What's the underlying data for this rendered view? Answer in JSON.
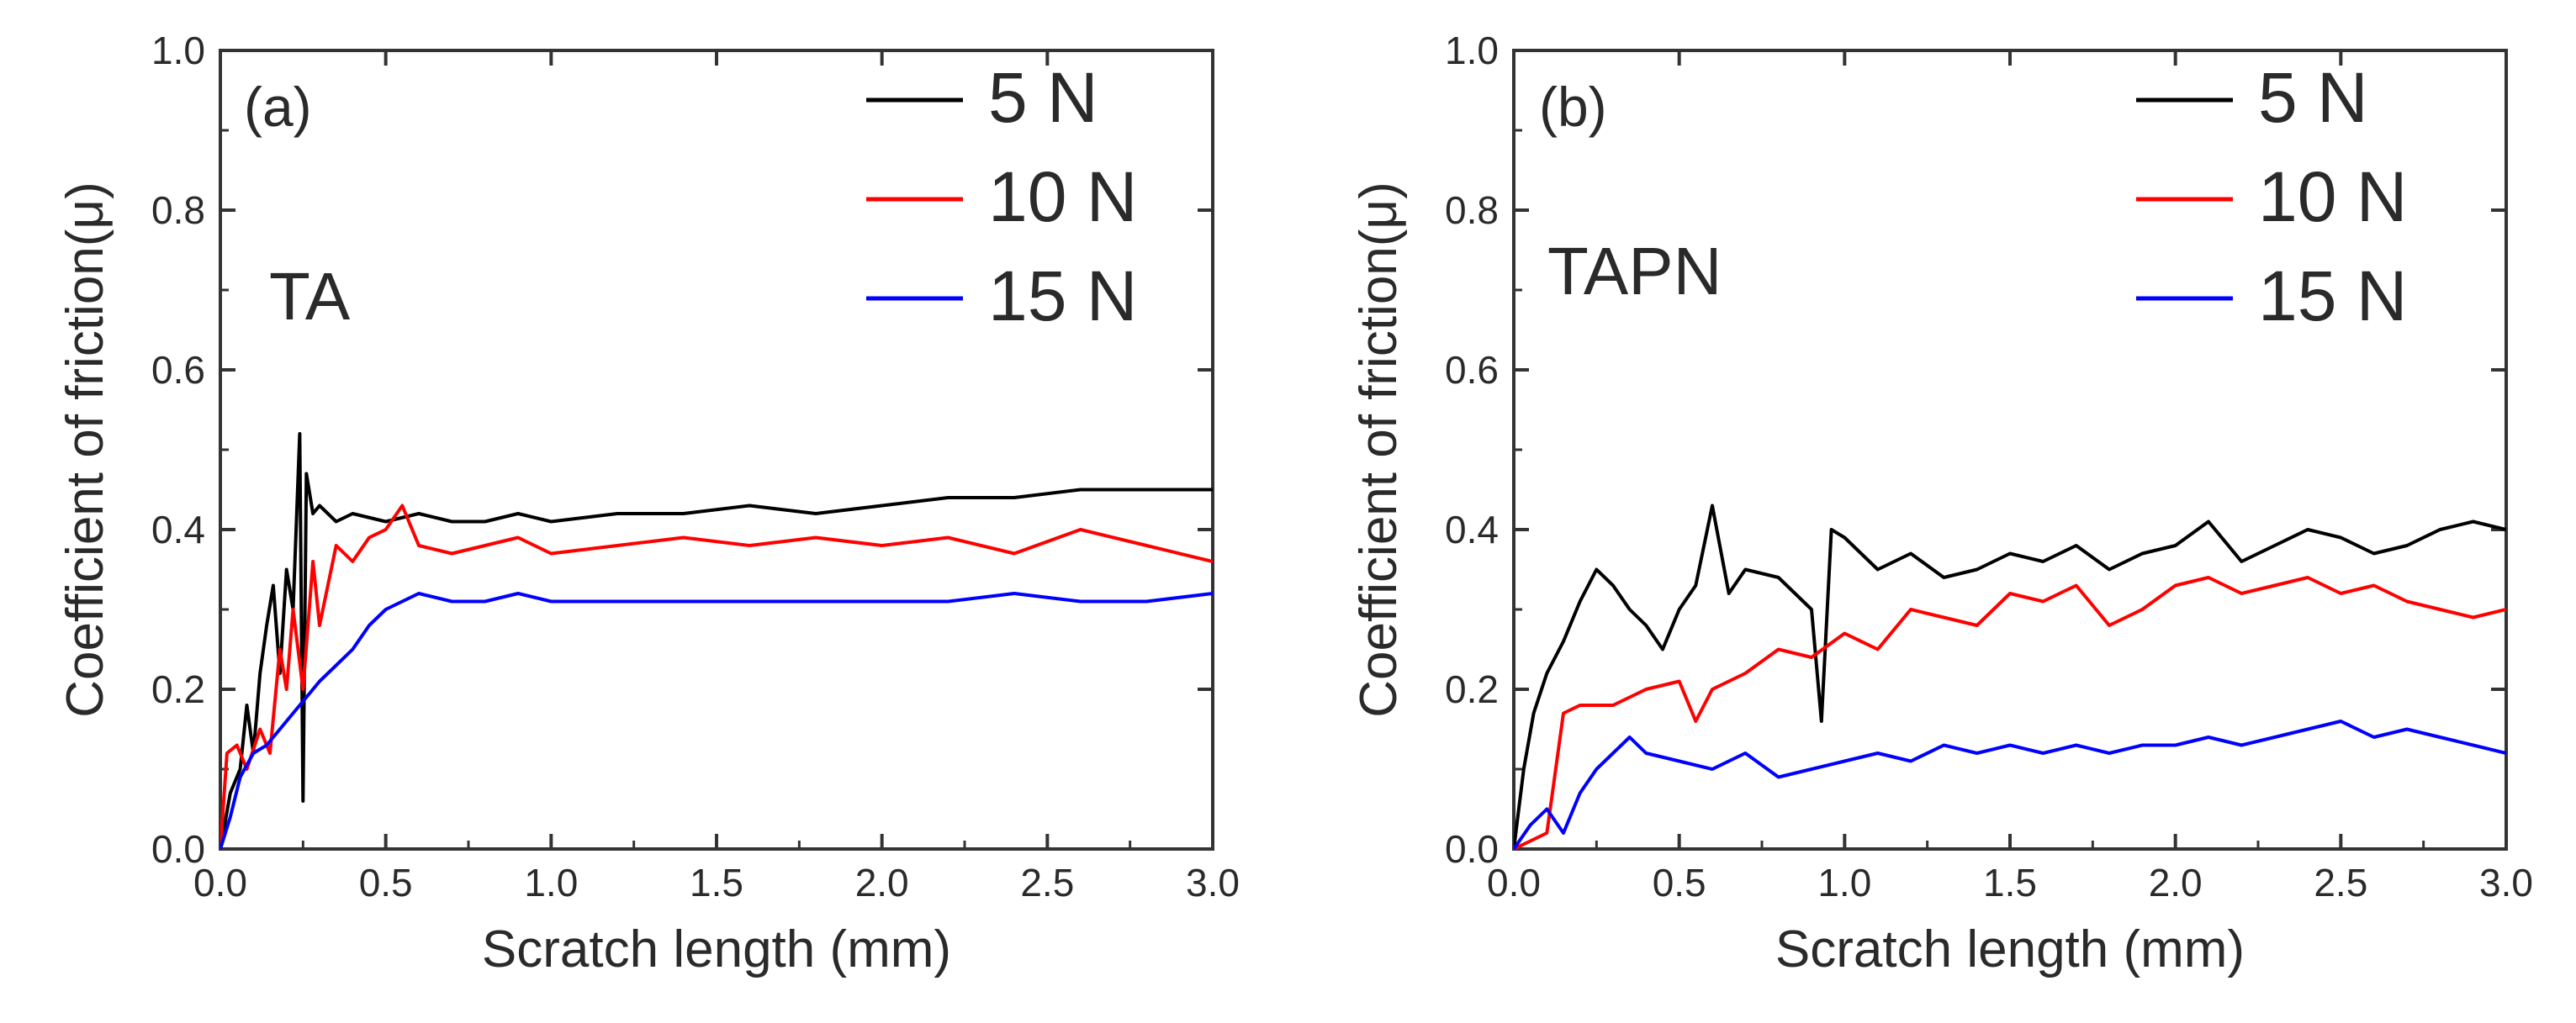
{
  "colors": {
    "load_5N": "#000000",
    "load_10N": "#ff0000",
    "load_15N": "#0000ff",
    "axis": "#333333"
  },
  "chart_data": [
    {
      "type": "line",
      "panel_label": "(a)",
      "material": "TA",
      "xlabel": "Scratch length (mm)",
      "ylabel": "Coefficient of friction(μ)",
      "xlim": [
        0,
        3.0
      ],
      "ylim": [
        0,
        1.0
      ],
      "xticks": [
        "0.0",
        "0.5",
        "1.0",
        "1.5",
        "2.0",
        "2.5",
        "3.0"
      ],
      "yticks": [
        "0.0",
        "0.2",
        "0.4",
        "0.6",
        "0.8",
        "1.0"
      ],
      "legend_position": "top-right",
      "series": [
        {
          "name": "5 N",
          "color_key": "load_5N",
          "x": [
            0,
            0.03,
            0.06,
            0.08,
            0.1,
            0.12,
            0.14,
            0.16,
            0.18,
            0.2,
            0.22,
            0.24,
            0.25,
            0.26,
            0.28,
            0.3,
            0.35,
            0.4,
            0.5,
            0.6,
            0.7,
            0.8,
            0.9,
            1.0,
            1.2,
            1.4,
            1.6,
            1.8,
            2.0,
            2.2,
            2.4,
            2.6,
            2.8,
            3.0
          ],
          "values": [
            0.0,
            0.07,
            0.1,
            0.18,
            0.12,
            0.22,
            0.28,
            0.33,
            0.22,
            0.35,
            0.3,
            0.52,
            0.06,
            0.47,
            0.42,
            0.43,
            0.41,
            0.42,
            0.41,
            0.42,
            0.41,
            0.41,
            0.42,
            0.41,
            0.42,
            0.42,
            0.43,
            0.42,
            0.43,
            0.44,
            0.44,
            0.45,
            0.45,
            0.45
          ]
        },
        {
          "name": "10 N",
          "color_key": "load_10N",
          "x": [
            0,
            0.02,
            0.05,
            0.08,
            0.12,
            0.15,
            0.18,
            0.2,
            0.22,
            0.25,
            0.28,
            0.3,
            0.35,
            0.4,
            0.45,
            0.5,
            0.55,
            0.6,
            0.7,
            0.8,
            0.9,
            1.0,
            1.2,
            1.4,
            1.6,
            1.8,
            2.0,
            2.2,
            2.4,
            2.6,
            2.8,
            3.0
          ],
          "values": [
            0.0,
            0.12,
            0.13,
            0.1,
            0.15,
            0.12,
            0.25,
            0.2,
            0.3,
            0.2,
            0.36,
            0.28,
            0.38,
            0.36,
            0.39,
            0.4,
            0.43,
            0.38,
            0.37,
            0.38,
            0.39,
            0.37,
            0.38,
            0.39,
            0.38,
            0.39,
            0.38,
            0.39,
            0.37,
            0.4,
            0.38,
            0.36
          ]
        },
        {
          "name": "15 N",
          "color_key": "load_15N",
          "x": [
            0,
            0.03,
            0.06,
            0.1,
            0.14,
            0.18,
            0.22,
            0.26,
            0.3,
            0.35,
            0.4,
            0.45,
            0.5,
            0.55,
            0.6,
            0.7,
            0.8,
            0.9,
            1.0,
            1.2,
            1.4,
            1.6,
            1.8,
            2.0,
            2.2,
            2.4,
            2.6,
            2.8,
            3.0
          ],
          "values": [
            0.0,
            0.04,
            0.09,
            0.12,
            0.13,
            0.15,
            0.17,
            0.19,
            0.21,
            0.23,
            0.25,
            0.28,
            0.3,
            0.31,
            0.32,
            0.31,
            0.31,
            0.32,
            0.31,
            0.31,
            0.31,
            0.31,
            0.31,
            0.31,
            0.31,
            0.32,
            0.31,
            0.31,
            0.32
          ]
        }
      ]
    },
    {
      "type": "line",
      "panel_label": "(b)",
      "material": "TAPN",
      "xlabel": "Scratch length (mm)",
      "ylabel": "Coefficient of friction(μ)",
      "xlim": [
        0,
        3.0
      ],
      "ylim": [
        0,
        1.0
      ],
      "xticks": [
        "0.0",
        "0.5",
        "1.0",
        "1.5",
        "2.0",
        "2.5",
        "3.0"
      ],
      "yticks": [
        "0.0",
        "0.2",
        "0.4",
        "0.6",
        "0.8",
        "1.0"
      ],
      "legend_position": "top-right",
      "series": [
        {
          "name": "5 N",
          "color_key": "load_5N",
          "x": [
            0,
            0.03,
            0.06,
            0.1,
            0.15,
            0.2,
            0.25,
            0.3,
            0.35,
            0.4,
            0.45,
            0.5,
            0.55,
            0.6,
            0.65,
            0.7,
            0.8,
            0.9,
            0.93,
            0.96,
            1.0,
            1.1,
            1.2,
            1.3,
            1.4,
            1.5,
            1.6,
            1.7,
            1.8,
            1.9,
            2.0,
            2.1,
            2.2,
            2.3,
            2.4,
            2.5,
            2.6,
            2.7,
            2.8,
            2.9,
            3.0
          ],
          "values": [
            0.0,
            0.1,
            0.17,
            0.22,
            0.26,
            0.31,
            0.35,
            0.33,
            0.3,
            0.28,
            0.25,
            0.3,
            0.33,
            0.43,
            0.32,
            0.35,
            0.34,
            0.3,
            0.16,
            0.4,
            0.39,
            0.35,
            0.37,
            0.34,
            0.35,
            0.37,
            0.36,
            0.38,
            0.35,
            0.37,
            0.38,
            0.41,
            0.36,
            0.38,
            0.4,
            0.39,
            0.37,
            0.38,
            0.4,
            0.41,
            0.4
          ]
        },
        {
          "name": "10 N",
          "color_key": "load_10N",
          "x": [
            0,
            0.05,
            0.1,
            0.12,
            0.15,
            0.2,
            0.3,
            0.4,
            0.5,
            0.55,
            0.6,
            0.7,
            0.8,
            0.9,
            1.0,
            1.1,
            1.2,
            1.3,
            1.4,
            1.5,
            1.6,
            1.7,
            1.8,
            1.9,
            2.0,
            2.1,
            2.2,
            2.3,
            2.4,
            2.5,
            2.6,
            2.7,
            2.8,
            2.9,
            3.0
          ],
          "values": [
            0.0,
            0.01,
            0.02,
            0.08,
            0.17,
            0.18,
            0.18,
            0.2,
            0.21,
            0.16,
            0.2,
            0.22,
            0.25,
            0.24,
            0.27,
            0.25,
            0.3,
            0.29,
            0.28,
            0.32,
            0.31,
            0.33,
            0.28,
            0.3,
            0.33,
            0.34,
            0.32,
            0.33,
            0.34,
            0.32,
            0.33,
            0.31,
            0.3,
            0.29,
            0.3
          ]
        },
        {
          "name": "15 N",
          "color_key": "load_15N",
          "x": [
            0,
            0.05,
            0.1,
            0.15,
            0.2,
            0.25,
            0.3,
            0.35,
            0.4,
            0.5,
            0.6,
            0.7,
            0.8,
            0.9,
            1.0,
            1.1,
            1.2,
            1.3,
            1.4,
            1.5,
            1.6,
            1.7,
            1.8,
            1.9,
            2.0,
            2.1,
            2.2,
            2.3,
            2.4,
            2.5,
            2.6,
            2.7,
            2.8,
            2.9,
            3.0
          ],
          "values": [
            0.0,
            0.03,
            0.05,
            0.02,
            0.07,
            0.1,
            0.12,
            0.14,
            0.12,
            0.11,
            0.1,
            0.12,
            0.09,
            0.1,
            0.11,
            0.12,
            0.11,
            0.13,
            0.12,
            0.13,
            0.12,
            0.13,
            0.12,
            0.13,
            0.13,
            0.14,
            0.13,
            0.14,
            0.15,
            0.16,
            0.14,
            0.15,
            0.14,
            0.13,
            0.12
          ]
        }
      ]
    }
  ]
}
